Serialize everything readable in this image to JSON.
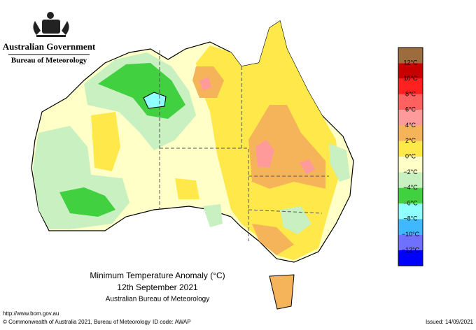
{
  "header": {
    "government": "Australian Government",
    "bureau": "Bureau of Meteorology"
  },
  "title": {
    "line1": "Minimum Temperature Anomaly (°C)",
    "line2": "12th September 2021",
    "line3": "Australian Bureau of Meteorology"
  },
  "legend": {
    "colors": [
      "#9c6b3e",
      "#c80000",
      "#ff2020",
      "#ff6060",
      "#ff9a9a",
      "#f5b45a",
      "#ffe84a",
      "#ffffc8",
      "#c8f0c0",
      "#40d040",
      "#90ffff",
      "#40b8ff",
      "#7070ff",
      "#0000ff"
    ],
    "labels": [
      "12°C",
      "10°C",
      "8°C",
      "6°C",
      "4°C",
      "2°C",
      "0°C",
      "−2°C",
      "−4°C",
      "−6°C",
      "−8°C",
      "−10°C",
      "−12°C"
    ]
  },
  "footer": {
    "url": "http://www.bom.gov.au",
    "copyright": "© Commonwealth of Australia 2021, Bureau of Meteorology",
    "id": "ID code: AWAP",
    "issued": "Issued: 14/09/2021"
  }
}
